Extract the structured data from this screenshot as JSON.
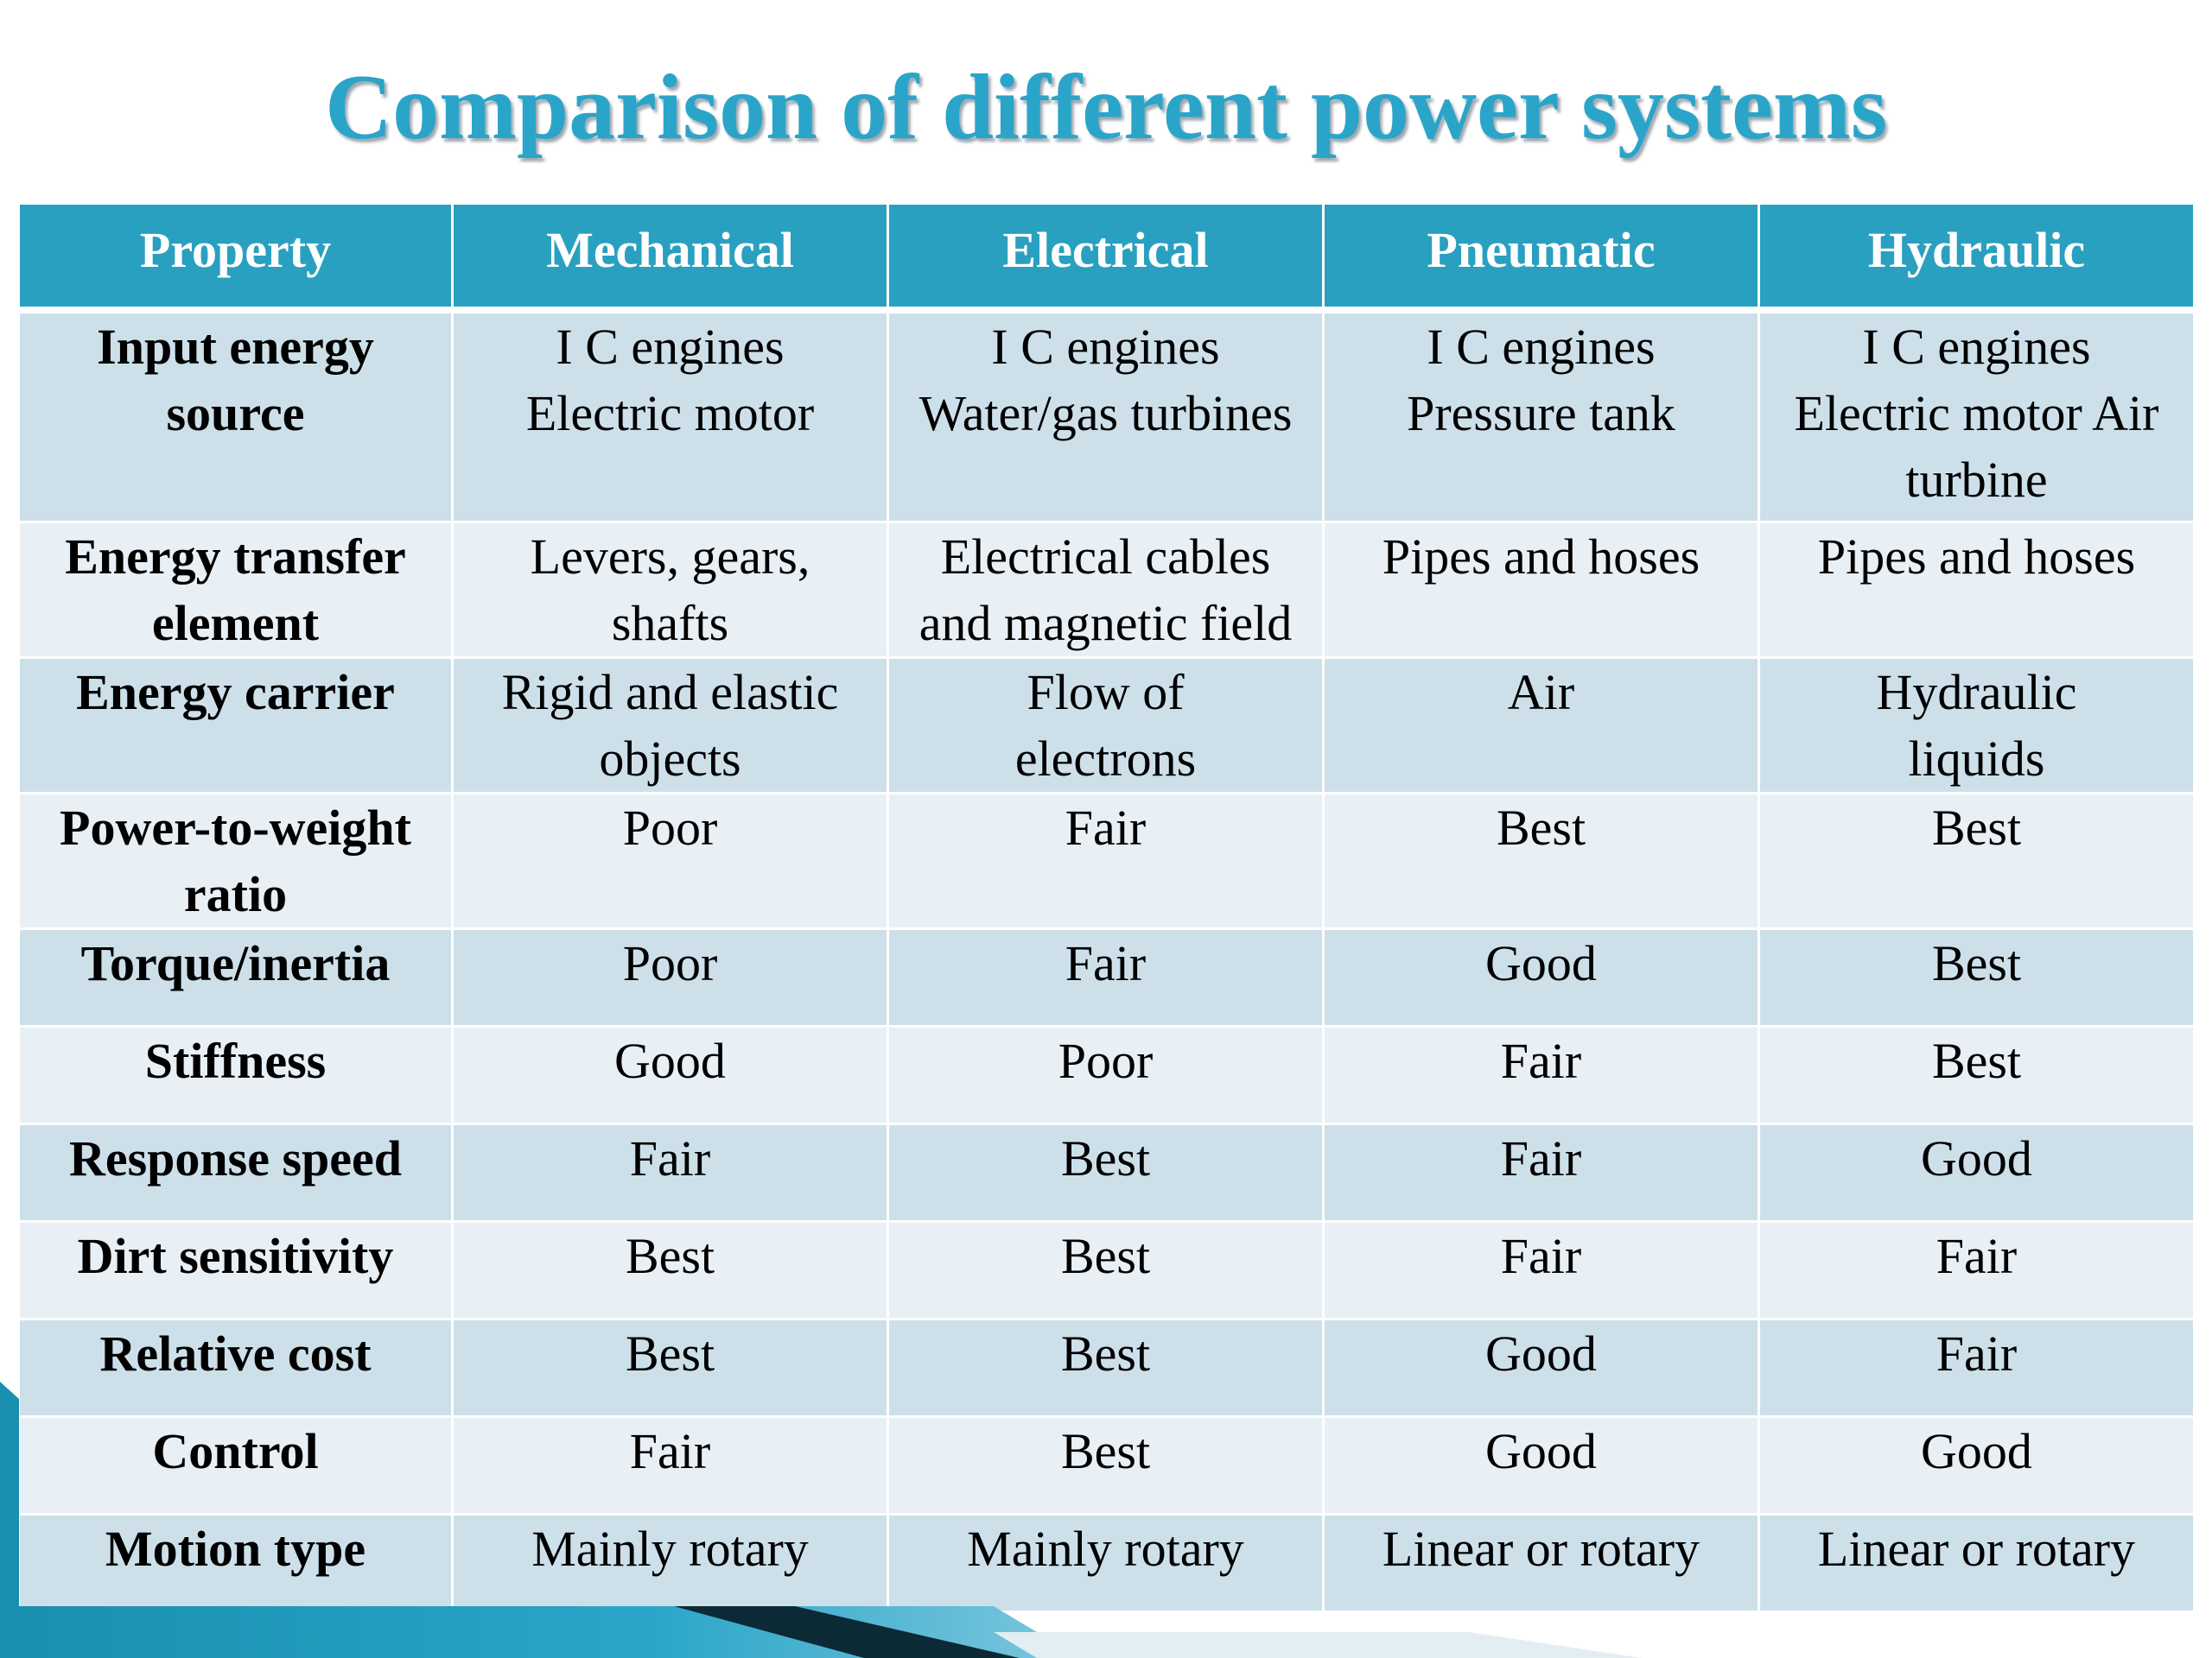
{
  "title": "Comparison of different power systems",
  "colors": {
    "title": "#2aa5c9",
    "header_bg": "#2aa0c0",
    "row_dark": "#cde0ea",
    "row_light": "#e8eff5",
    "decor_teal": "#1a8fb0",
    "decor_dark": "#0b2a36"
  },
  "table": {
    "headers": [
      "Property",
      "Mechanical",
      "Electrical",
      "Pneumatic",
      "Hydraulic"
    ],
    "rows": [
      [
        "Input energy\nsource",
        "I C engines\nElectric motor",
        "I C engines\nWater/gas turbines",
        "I C engines\nPressure tank",
        "I C engines\nElectric motor Air\nturbine"
      ],
      [
        "Energy transfer\nelement",
        "Levers, gears,\nshafts",
        "Electrical cables\nand magnetic field",
        "Pipes and hoses",
        "Pipes and hoses"
      ],
      [
        "Energy carrier",
        "Rigid and elastic\nobjects",
        "Flow of\nelectrons",
        "Air",
        "Hydraulic\nliquids"
      ],
      [
        "Power-to-weight\nratio",
        "Poor",
        "Fair",
        "Best",
        "Best"
      ],
      [
        "Torque/inertia",
        "Poor",
        "Fair",
        "Good",
        "Best"
      ],
      [
        "Stiffness",
        "Good",
        "Poor",
        "Fair",
        "Best"
      ],
      [
        "Response speed",
        "Fair",
        "Best",
        "Fair",
        "Good"
      ],
      [
        "Dirt sensitivity",
        "Best",
        "Best",
        "Fair",
        "Fair"
      ],
      [
        "Relative cost",
        "Best",
        "Best",
        "Good",
        "Fair"
      ],
      [
        "Control",
        "Fair",
        "Best",
        "Good",
        "Good"
      ],
      [
        "Motion type",
        "Mainly rotary",
        "Mainly rotary",
        "Linear or rotary",
        "Linear or rotary"
      ]
    ]
  }
}
